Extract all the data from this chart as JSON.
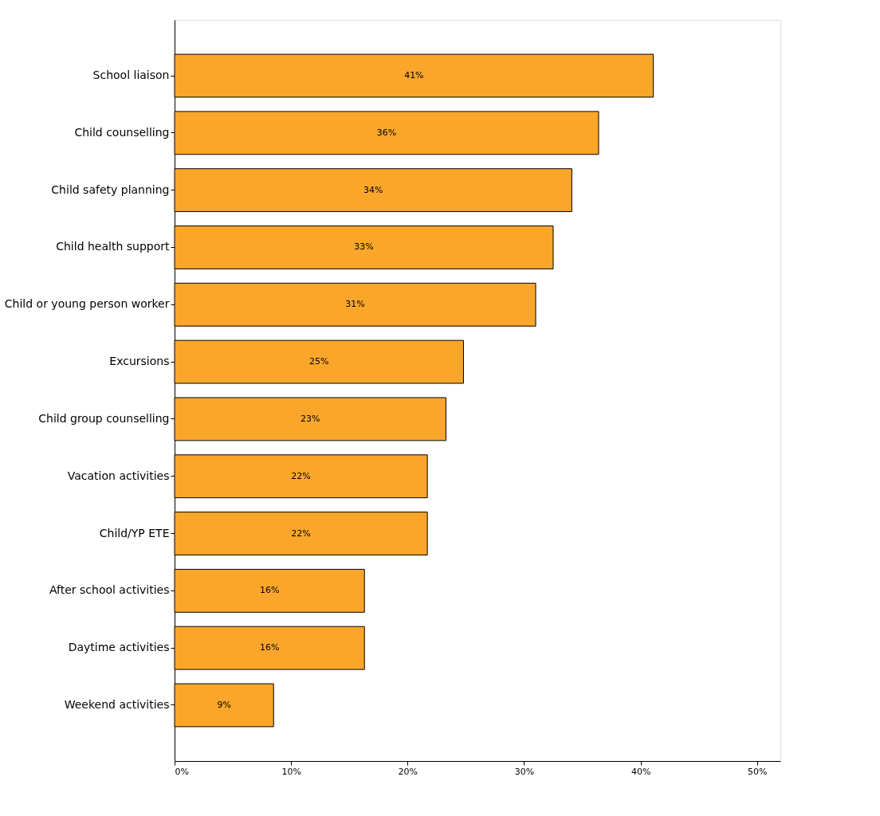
{
  "chart_data": {
    "type": "bar",
    "orientation": "horizontal",
    "categories": [
      "School liaison",
      "Child counselling",
      "Child safety planning",
      "Child health support",
      "Child or young person worker",
      "Excursions",
      "Child group counselling",
      "Vacation activities",
      "Child/YP ETE",
      "After school activities",
      "Daytime activities",
      "Weekend activities"
    ],
    "values": [
      41.1,
      36.4,
      34.1,
      32.5,
      31.0,
      24.8,
      23.3,
      21.7,
      21.7,
      16.3,
      16.3,
      8.5
    ],
    "value_labels": [
      "41%",
      "36%",
      "34%",
      "33%",
      "31%",
      "25%",
      "23%",
      "22%",
      "22%",
      "16%",
      "16%",
      "9%"
    ],
    "color": "#f9a62b",
    "xlim": [
      0,
      52
    ],
    "xticks": [
      {
        "value": 0,
        "label": "0%"
      },
      {
        "value": 10,
        "label": "10%"
      },
      {
        "value": 20,
        "label": "20%"
      },
      {
        "value": 30,
        "label": "30%"
      },
      {
        "value": 40,
        "label": "40%"
      },
      {
        "value": 50,
        "label": "50%"
      }
    ],
    "grid": false
  }
}
